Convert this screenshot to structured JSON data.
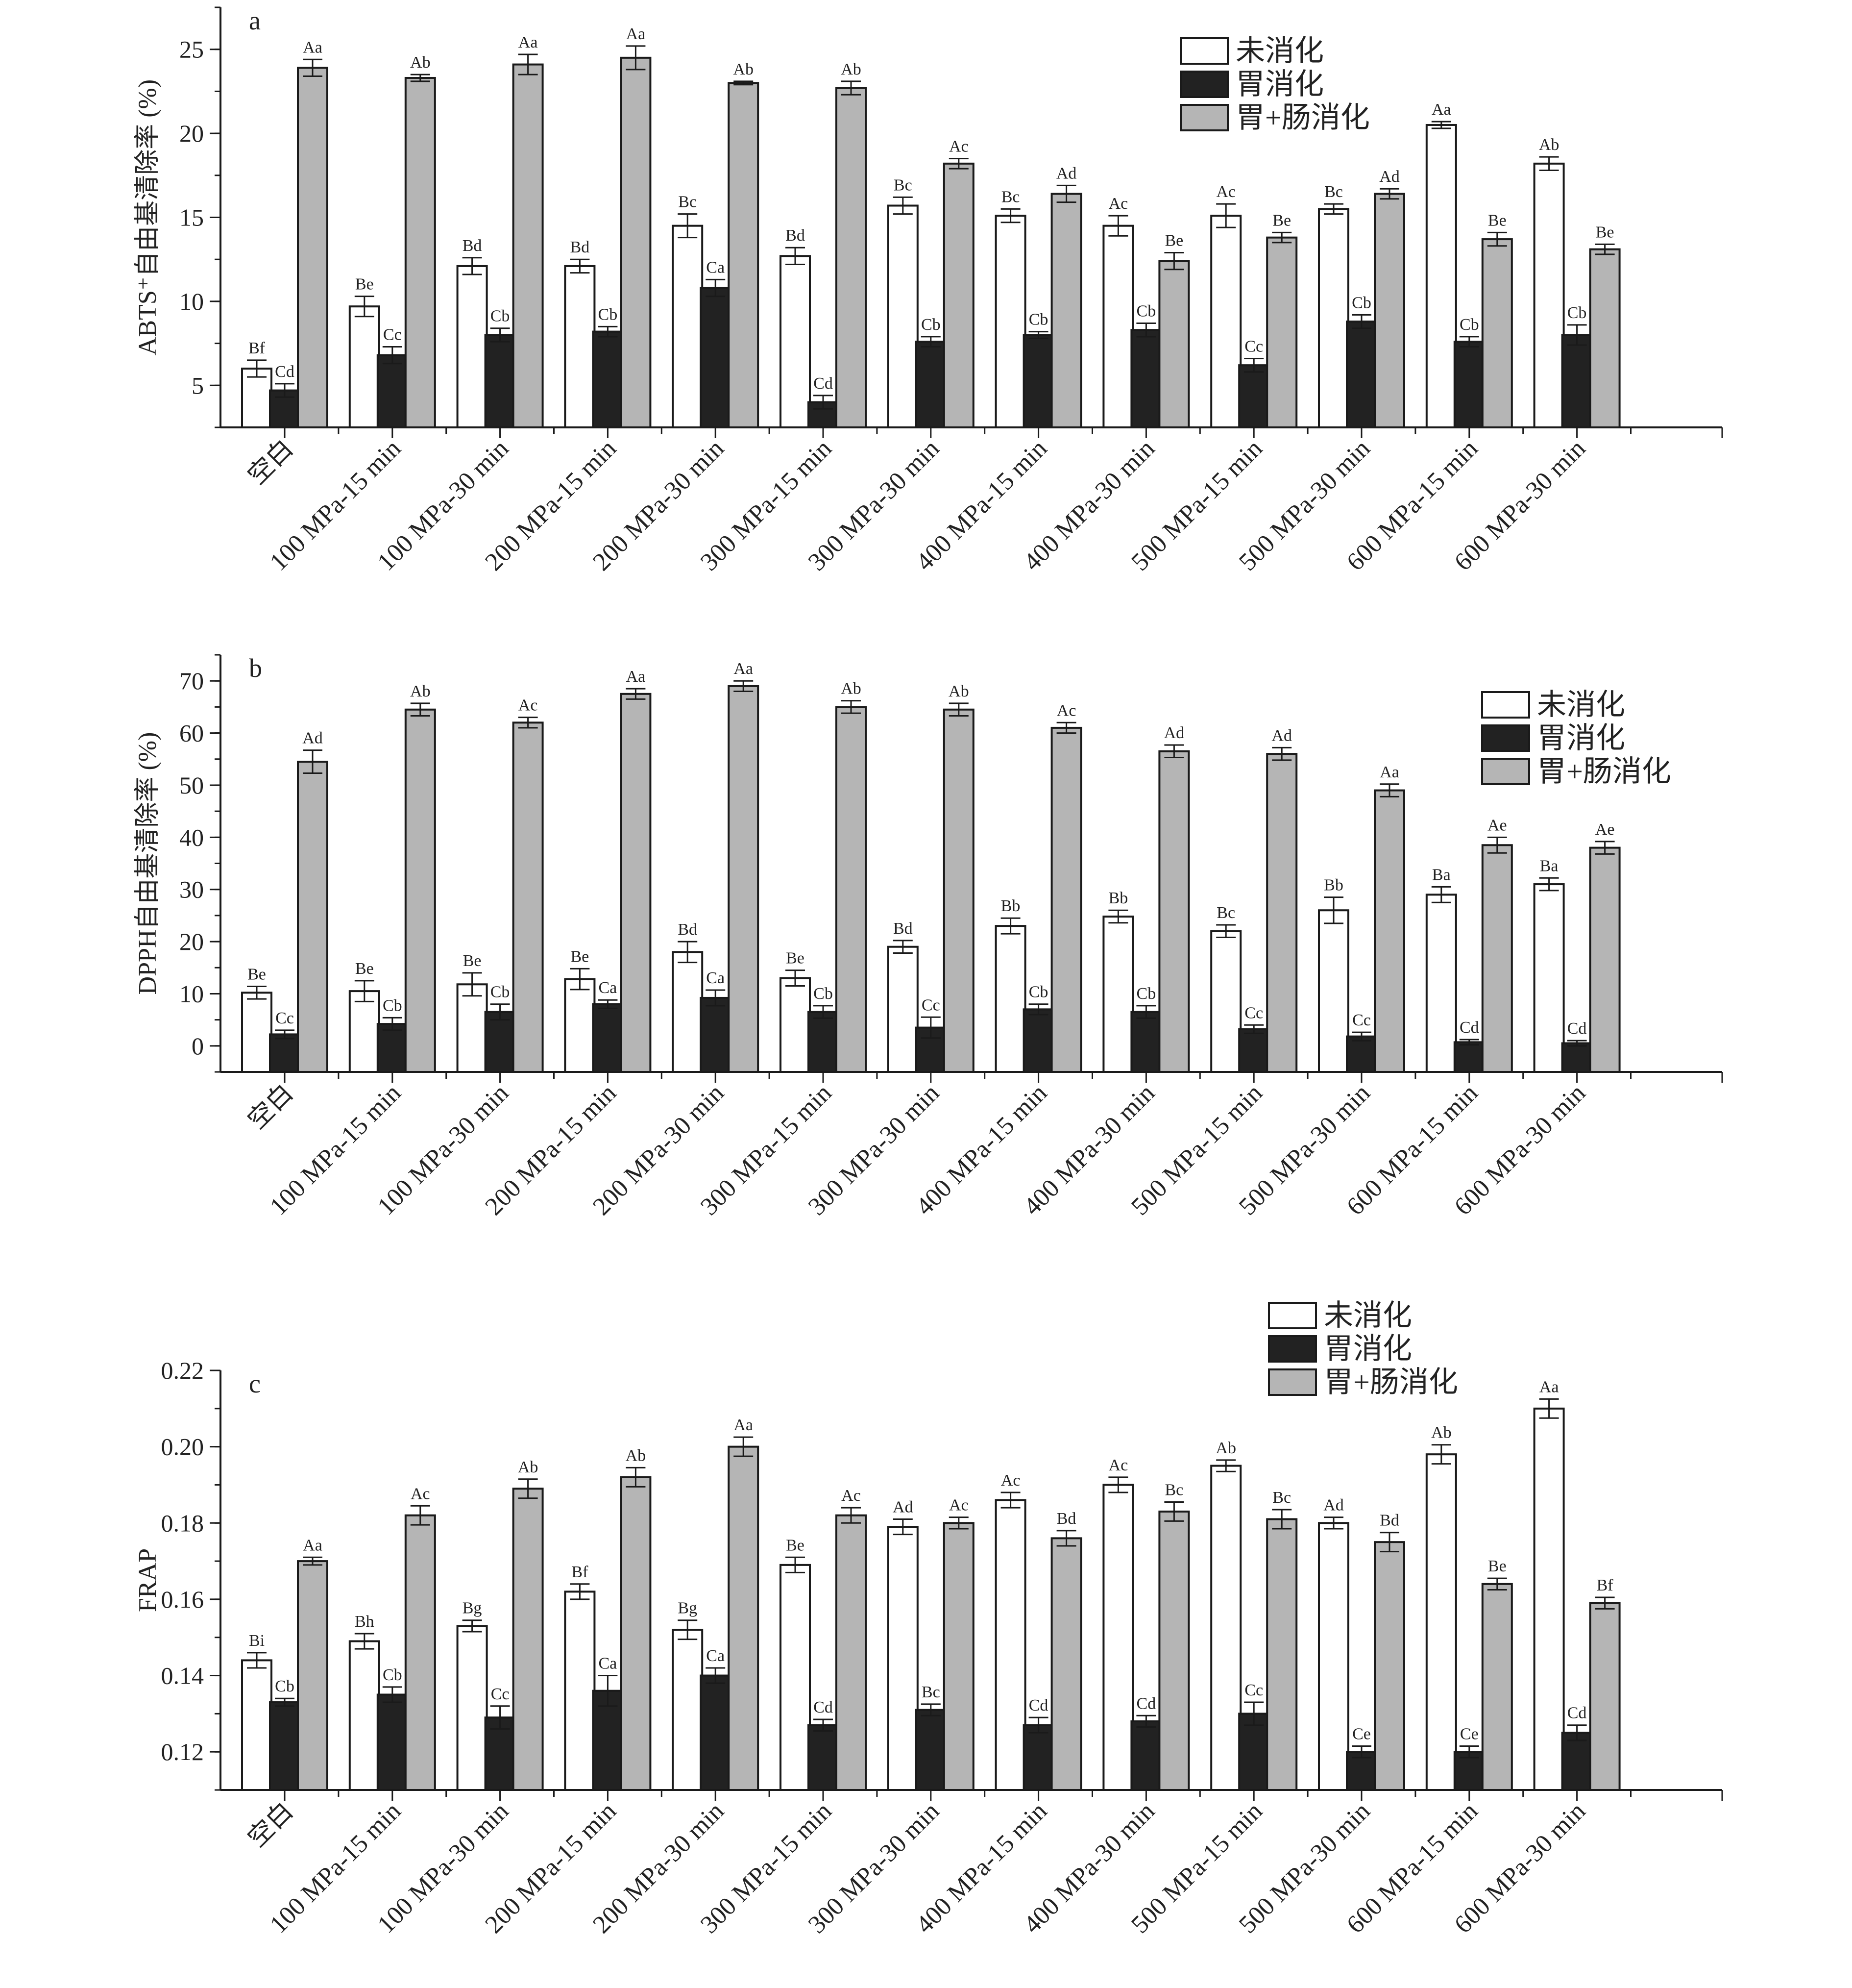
{
  "chart_data": [
    {
      "type": "bar",
      "panel": "a",
      "ylabel": "ABTS⁺自由基清除率 (%)",
      "ylim": [
        2.5,
        27.5
      ],
      "yticks": [
        5,
        10,
        15,
        20,
        25
      ],
      "y_tick_labels": [
        "5",
        "10",
        "15",
        "20",
        "25"
      ],
      "legend_position": "top-right",
      "categories": [
        "空白",
        "100 MPa-15 min",
        "100 MPa-30 min",
        "200 MPa-15 min",
        "200 MPa-30 min",
        "300 MPa-15 min",
        "300 MPa-30 min",
        "400 MPa-15 min",
        "400 MPa-30 min",
        "500 MPa-15 min",
        "500 MPa-30 min",
        "600 MPa-15 min",
        "600 MPa-30 min"
      ],
      "series": [
        {
          "name": "未消化",
          "color": "#ffffff",
          "values": [
            6.0,
            9.7,
            12.1,
            12.1,
            14.5,
            12.7,
            15.7,
            15.1,
            14.5,
            15.1,
            15.5,
            20.5,
            18.2
          ],
          "errors": [
            0.5,
            0.6,
            0.5,
            0.4,
            0.7,
            0.5,
            0.5,
            0.4,
            0.6,
            0.7,
            0.3,
            0.2,
            0.4
          ],
          "labels": [
            "Bf",
            "Be",
            "Bd",
            "Bd",
            "Bc",
            "Bd",
            "Bc",
            "Bc",
            "Ac",
            "Ac",
            "Bc",
            "Aa",
            "Ab"
          ]
        },
        {
          "name": "胃消化",
          "color": "#222222",
          "values": [
            4.7,
            6.8,
            8.0,
            8.2,
            10.8,
            4.0,
            7.6,
            8.0,
            8.3,
            6.2,
            8.8,
            7.6,
            8.0
          ],
          "errors": [
            0.4,
            0.5,
            0.4,
            0.3,
            0.5,
            0.4,
            0.3,
            0.2,
            0.4,
            0.4,
            0.4,
            0.3,
            0.6
          ],
          "labels": [
            "Cd",
            "Cc",
            "Cb",
            "Cb",
            "Ca",
            "Cd",
            "Cb",
            "Cb",
            "Cb",
            "Cc",
            "Cb",
            "Cb",
            "Cb"
          ]
        },
        {
          "name": "胃+肠消化",
          "color": "#b5b5b5",
          "values": [
            23.9,
            23.3,
            24.1,
            24.5,
            23.0,
            22.7,
            18.2,
            16.4,
            12.4,
            13.8,
            16.4,
            13.7,
            13.1
          ],
          "errors": [
            0.5,
            0.2,
            0.6,
            0.7,
            0.1,
            0.4,
            0.3,
            0.5,
            0.5,
            0.3,
            0.3,
            0.4,
            0.3
          ],
          "labels": [
            "Aa",
            "Ab",
            "Aa",
            "Aa",
            "Ab",
            "Ab",
            "Ac",
            "Ad",
            "Be",
            "Be",
            "Ad",
            "Be",
            "Be"
          ]
        }
      ]
    },
    {
      "type": "bar",
      "panel": "b",
      "ylabel": "DPPH自由基清除率 (%)",
      "ylim": [
        -5,
        75
      ],
      "yticks": [
        0,
        10,
        20,
        30,
        40,
        50,
        60,
        70
      ],
      "y_tick_labels": [
        "0",
        "10",
        "20",
        "30",
        "40",
        "50",
        "60",
        "70"
      ],
      "legend_position": "top-right",
      "categories": [
        "空白",
        "100 MPa-15 min",
        "100 MPa-30 min",
        "200 MPa-15 min",
        "200 MPa-30 min",
        "300 MPa-15 min",
        "300 MPa-30 min",
        "400 MPa-15 min",
        "400 MPa-30 min",
        "500 MPa-15 min",
        "500 MPa-30 min",
        "600 MPa-15 min",
        "600 MPa-30 min"
      ],
      "series": [
        {
          "name": "未消化",
          "color": "#ffffff",
          "values": [
            10.2,
            10.5,
            11.8,
            12.8,
            18.0,
            13.0,
            19.0,
            23.0,
            24.8,
            22.0,
            26.0,
            29.0,
            31.0
          ],
          "errors": [
            1.2,
            2.0,
            2.2,
            2.0,
            2.0,
            1.5,
            1.2,
            1.5,
            1.2,
            1.2,
            2.5,
            1.5,
            1.2
          ],
          "labels": [
            "Be",
            "Be",
            "Be",
            "Be",
            "Bd",
            "Be",
            "Bd",
            "Bb",
            "Bb",
            "Bc",
            "Bb",
            "Ba",
            "Ba"
          ]
        },
        {
          "name": "胃消化",
          "color": "#222222",
          "values": [
            2.2,
            4.2,
            6.5,
            8.0,
            9.2,
            6.5,
            3.5,
            7.0,
            6.5,
            3.2,
            1.8,
            0.7,
            0.5
          ],
          "errors": [
            0.8,
            1.2,
            1.5,
            0.8,
            1.5,
            1.2,
            2.0,
            1.0,
            1.2,
            0.8,
            0.8,
            0.5,
            0.5
          ],
          "labels": [
            "Cc",
            "Cb",
            "Cb",
            "Ca",
            "Ca",
            "Cb",
            "Cc",
            "Cb",
            "Cb",
            "Cc",
            "Cc",
            "Cd",
            "Cd"
          ]
        },
        {
          "name": "胃+肠消化",
          "color": "#b5b5b5",
          "values": [
            54.5,
            64.5,
            62.0,
            67.5,
            69.0,
            65.0,
            64.5,
            61.0,
            56.5,
            56.0,
            49.0,
            38.5,
            38.0
          ],
          "errors": [
            2.2,
            1.2,
            1.0,
            1.0,
            1.0,
            1.2,
            1.2,
            1.0,
            1.2,
            1.2,
            1.2,
            1.5,
            1.2
          ],
          "labels": [
            "Ad",
            "Ab",
            "Ac",
            "Aa",
            "Aa",
            "Ab",
            "Ab",
            "Ac",
            "Ad",
            "Ad",
            "Aa",
            "Ae",
            "Ae"
          ]
        }
      ]
    },
    {
      "type": "bar",
      "panel": "c",
      "ylabel": "FRAP",
      "ylim": [
        0.11,
        0.22
      ],
      "yticks": [
        0.12,
        0.14,
        0.16,
        0.18,
        0.2,
        0.22
      ],
      "y_tick_labels": [
        "0.12",
        "0.14",
        "0.16",
        "0.18",
        "0.20",
        "0.22"
      ],
      "legend_position": "top-right",
      "categories": [
        "空白",
        "100 MPa-15 min",
        "100 MPa-30 min",
        "200 MPa-15 min",
        "200 MPa-30 min",
        "300 MPa-15 min",
        "300 MPa-30 min",
        "400 MPa-15 min",
        "400 MPa-30 min",
        "500 MPa-15 min",
        "500 MPa-30 min",
        "600 MPa-15 min",
        "600 MPa-30 min"
      ],
      "series": [
        {
          "name": "未消化",
          "color": "#ffffff",
          "values": [
            0.144,
            0.149,
            0.153,
            0.162,
            0.152,
            0.169,
            0.179,
            0.186,
            0.19,
            0.195,
            0.18,
            0.198,
            0.21
          ],
          "errors": [
            0.002,
            0.002,
            0.0015,
            0.002,
            0.0025,
            0.002,
            0.002,
            0.002,
            0.002,
            0.0015,
            0.0015,
            0.0025,
            0.0025
          ],
          "labels": [
            "Bi",
            "Bh",
            "Bg",
            "Bf",
            "Bg",
            "Be",
            "Ad",
            "Ac",
            "Ac",
            "Ab",
            "Ad",
            "Ab",
            "Aa"
          ]
        },
        {
          "name": "胃消化",
          "color": "#222222",
          "values": [
            0.133,
            0.135,
            0.129,
            0.136,
            0.14,
            0.127,
            0.131,
            0.127,
            0.128,
            0.13,
            0.12,
            0.12,
            0.125
          ],
          "errors": [
            0.001,
            0.002,
            0.003,
            0.004,
            0.002,
            0.0015,
            0.0015,
            0.002,
            0.0015,
            0.003,
            0.0015,
            0.0015,
            0.002
          ],
          "labels": [
            "Cb",
            "Cb",
            "Cc",
            "Ca",
            "Ca",
            "Cd",
            "Bc",
            "Cd",
            "Cd",
            "Cc",
            "Ce",
            "Ce",
            "Cd"
          ]
        },
        {
          "name": "胃+肠消化",
          "color": "#b5b5b5",
          "values": [
            0.17,
            0.182,
            0.189,
            0.192,
            0.2,
            0.182,
            0.18,
            0.176,
            0.183,
            0.181,
            0.175,
            0.164,
            0.159
          ],
          "errors": [
            0.001,
            0.0025,
            0.0025,
            0.0025,
            0.0025,
            0.002,
            0.0015,
            0.002,
            0.0025,
            0.0025,
            0.0025,
            0.0015,
            0.0015
          ],
          "labels": [
            "Aa",
            "Ac",
            "Ab",
            "Ab",
            "Aa",
            "Ac",
            "Ac",
            "Bd",
            "Bc",
            "Bc",
            "Bd",
            "Be",
            "Bf"
          ]
        }
      ]
    }
  ]
}
